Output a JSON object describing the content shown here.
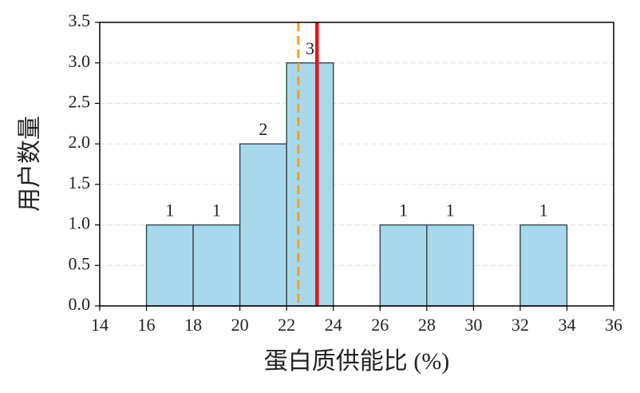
{
  "chart_data": {
    "type": "histogram",
    "xlabel": "蛋白质供能比 (%)",
    "ylabel": "用户数量",
    "bins": [
      16,
      18,
      20,
      22,
      24,
      26,
      28,
      30,
      32,
      34
    ],
    "counts": [
      1,
      1,
      2,
      3,
      0,
      1,
      1,
      0,
      1
    ],
    "color": "#a8d8ec",
    "edgecolor": "#3d4f55",
    "xlim": [
      14,
      36
    ],
    "xticks": [
      14,
      16,
      18,
      20,
      22,
      24,
      26,
      28,
      30,
      32,
      34,
      36
    ],
    "ylim": [
      0,
      3.5
    ],
    "yticks": [
      {
        "value": 0,
        "label": "0.0"
      },
      0.5,
      {
        "value": 1,
        "label": "1.0"
      },
      1.5,
      {
        "value": 2,
        "label": "2.0"
      },
      2.5,
      {
        "value": 3,
        "label": "3.0"
      },
      3.5
    ],
    "grid": true,
    "vlines": [
      {
        "value": 22.5,
        "color": "#f5a31a",
        "style": "dashed"
      },
      {
        "value": 23.3,
        "color": "#ee1111",
        "style": "solid"
      }
    ]
  }
}
